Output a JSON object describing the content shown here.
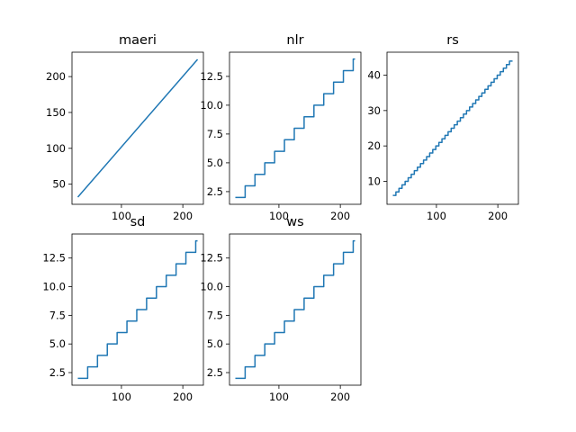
{
  "colors": {
    "series": "#1f77b4"
  },
  "chart_data": [
    {
      "type": "line",
      "title": "maeri",
      "xlim": [
        19.5,
        233.5
      ],
      "ylim": [
        22,
        234
      ],
      "xticks": [
        100,
        200
      ],
      "xtick_labels": [
        "100",
        "200"
      ],
      "yticks": [
        50,
        100,
        150,
        200
      ],
      "ytick_labels": [
        "50",
        "100",
        "150",
        "200"
      ],
      "series": [
        {
          "mode": "linear",
          "x_start": 29,
          "x_end": 224,
          "y_start": 32,
          "y_end": 224
        }
      ]
    },
    {
      "type": "line",
      "title": "nlr",
      "xlim": [
        19.5,
        233.5
      ],
      "ylim": [
        1.4,
        14.6
      ],
      "xticks": [
        100,
        200
      ],
      "xtick_labels": [
        "100",
        "200"
      ],
      "yticks": [
        2.5,
        5.0,
        7.5,
        10.0,
        12.5
      ],
      "ytick_labels": [
        "2.5",
        "5.0",
        "7.5",
        "10.0",
        "12.5"
      ],
      "series": [
        {
          "mode": "step",
          "x_start": 29,
          "x_end": 224,
          "y_start": 2,
          "y_end": 14,
          "step_width": 16
        }
      ]
    },
    {
      "type": "line",
      "title": "rs",
      "xlim": [
        19.5,
        233.5
      ],
      "ylim": [
        3.5,
        46.5
      ],
      "xticks": [
        100,
        200
      ],
      "xtick_labels": [
        "100",
        "200"
      ],
      "yticks": [
        10,
        20,
        30,
        40
      ],
      "ytick_labels": [
        "10",
        "20",
        "30",
        "40"
      ],
      "series": [
        {
          "mode": "step",
          "x_start": 29,
          "x_end": 224,
          "y_start": 6,
          "y_end": 44,
          "step_width": 5
        }
      ]
    },
    {
      "type": "line",
      "title": "sd",
      "xlim": [
        19.5,
        233.5
      ],
      "ylim": [
        1.4,
        14.6
      ],
      "xticks": [
        100,
        200
      ],
      "xtick_labels": [
        "100",
        "200"
      ],
      "yticks": [
        2.5,
        5.0,
        7.5,
        10.0,
        12.5
      ],
      "ytick_labels": [
        "2.5",
        "5.0",
        "7.5",
        "10.0",
        "12.5"
      ],
      "series": [
        {
          "mode": "step",
          "x_start": 29,
          "x_end": 224,
          "y_start": 2,
          "y_end": 14,
          "step_width": 16
        }
      ]
    },
    {
      "type": "line",
      "title": "ws",
      "xlim": [
        19.5,
        233.5
      ],
      "ylim": [
        1.4,
        14.6
      ],
      "xticks": [
        100,
        200
      ],
      "xtick_labels": [
        "100",
        "200"
      ],
      "yticks": [
        2.5,
        5.0,
        7.5,
        10.0,
        12.5
      ],
      "ytick_labels": [
        "2.5",
        "5.0",
        "7.5",
        "10.0",
        "12.5"
      ],
      "series": [
        {
          "mode": "step",
          "x_start": 29,
          "x_end": 224,
          "y_start": 2,
          "y_end": 14,
          "step_width": 16
        }
      ]
    }
  ]
}
